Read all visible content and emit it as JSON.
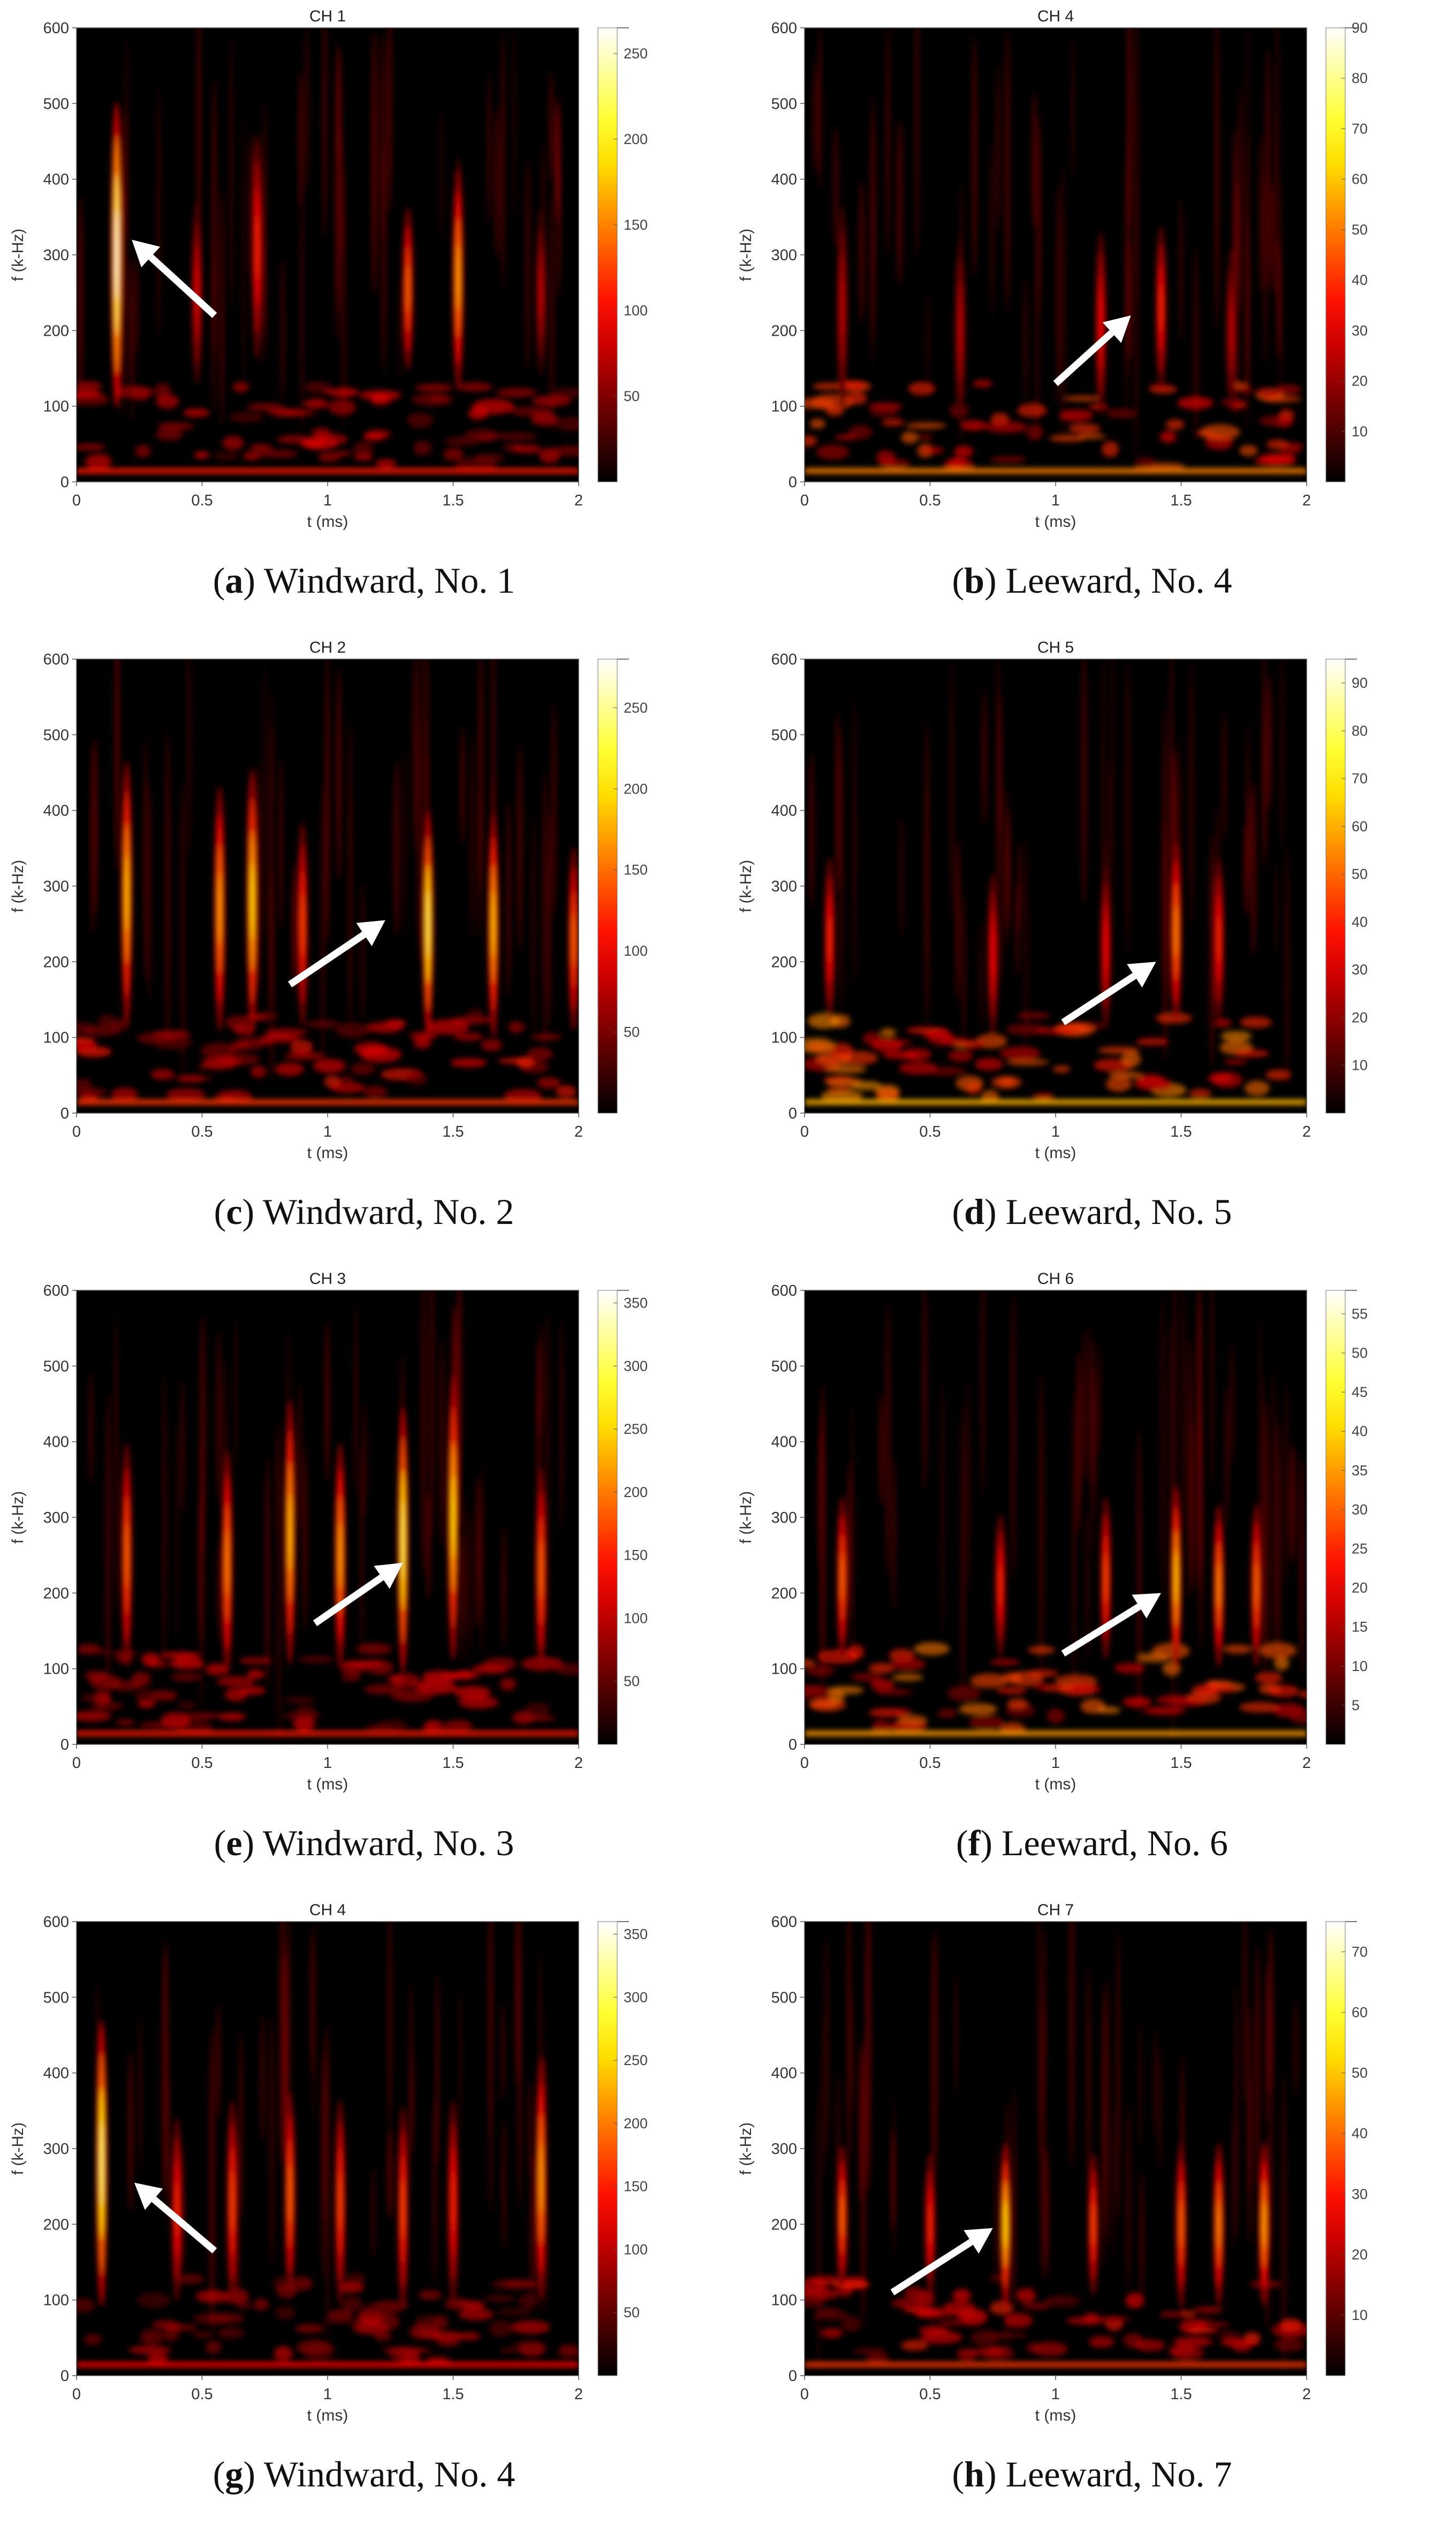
{
  "figure": {
    "x_axis_label": "t (ms)",
    "y_axis_label": "f (k-Hz)",
    "x_ticks": [
      "0",
      "0.5",
      "1",
      "1.5",
      "2"
    ],
    "y_ticks": [
      "0",
      "100",
      "200",
      "300",
      "400",
      "500",
      "600"
    ]
  },
  "chart_data": [
    {
      "type": "heatmap",
      "panel_letter": "a",
      "caption_text": " Windward, No. 1",
      "title": "CH 1",
      "xlabel": "t (ms)",
      "ylabel": "f (k-Hz)",
      "xlim": [
        0,
        2
      ],
      "ylim": [
        0,
        600
      ],
      "colorbar": {
        "range": [
          0,
          265
        ],
        "ticks": [
          50,
          100,
          150,
          200,
          250
        ]
      },
      "colormap": "hot",
      "ridges": [
        {
          "t": 0.16,
          "f_center": 300,
          "f_spread": 150,
          "intensity": 1.0
        },
        {
          "t": 0.48,
          "f_center": 250,
          "f_spread": 90,
          "intensity": 0.35
        },
        {
          "t": 0.72,
          "f_center": 310,
          "f_spread": 110,
          "intensity": 0.45
        },
        {
          "t": 1.32,
          "f_center": 255,
          "f_spread": 80,
          "intensity": 0.55
        },
        {
          "t": 1.52,
          "f_center": 270,
          "f_spread": 110,
          "intensity": 0.65
        },
        {
          "t": 1.85,
          "f_center": 250,
          "f_spread": 80,
          "intensity": 0.3
        }
      ],
      "low_band_intensity": 0.55,
      "arrow": {
        "from_t": 0.55,
        "from_f": 220,
        "to_t": 0.22,
        "to_f": 320
      }
    },
    {
      "type": "heatmap",
      "panel_letter": "b",
      "caption_text": " Leeward, No. 4",
      "title": "CH 4",
      "xlabel": "t (ms)",
      "ylabel": "f (k-Hz)",
      "xlim": [
        0,
        2
      ],
      "ylim": [
        0,
        600
      ],
      "colorbar": {
        "range": [
          0,
          90
        ],
        "ticks": [
          10,
          20,
          30,
          40,
          50,
          60,
          70,
          80,
          90
        ]
      },
      "colormap": "hot",
      "ridges": [
        {
          "t": 0.15,
          "f_center": 230,
          "f_spread": 100,
          "intensity": 0.3
        },
        {
          "t": 0.62,
          "f_center": 200,
          "f_spread": 90,
          "intensity": 0.3
        },
        {
          "t": 1.18,
          "f_center": 210,
          "f_spread": 90,
          "intensity": 0.4
        },
        {
          "t": 1.42,
          "f_center": 230,
          "f_spread": 80,
          "intensity": 0.45
        },
        {
          "t": 1.7,
          "f_center": 200,
          "f_spread": 80,
          "intensity": 0.3
        }
      ],
      "low_band_intensity": 0.75,
      "arrow": {
        "from_t": 1.0,
        "from_f": 130,
        "to_t": 1.3,
        "to_f": 220
      }
    },
    {
      "type": "heatmap",
      "panel_letter": "c",
      "caption_text": " Windward, No. 2",
      "title": "CH 2",
      "xlabel": "t (ms)",
      "ylabel": "f (k-Hz)",
      "xlim": [
        0,
        2
      ],
      "ylim": [
        0,
        600
      ],
      "colorbar": {
        "range": [
          0,
          280
        ],
        "ticks": [
          50,
          100,
          150,
          200,
          250
        ]
      },
      "colormap": "hot",
      "ridges": [
        {
          "t": 0.2,
          "f_center": 290,
          "f_spread": 130,
          "intensity": 0.7
        },
        {
          "t": 0.57,
          "f_center": 270,
          "f_spread": 120,
          "intensity": 0.65
        },
        {
          "t": 0.7,
          "f_center": 280,
          "f_spread": 130,
          "intensity": 0.75
        },
        {
          "t": 0.9,
          "f_center": 250,
          "f_spread": 100,
          "intensity": 0.5
        },
        {
          "t": 1.4,
          "f_center": 250,
          "f_spread": 110,
          "intensity": 0.85
        },
        {
          "t": 1.66,
          "f_center": 250,
          "f_spread": 110,
          "intensity": 0.7
        },
        {
          "t": 1.98,
          "f_center": 230,
          "f_spread": 90,
          "intensity": 0.55
        }
      ],
      "low_band_intensity": 0.6,
      "arrow": {
        "from_t": 0.85,
        "from_f": 170,
        "to_t": 1.23,
        "to_f": 255
      }
    },
    {
      "type": "heatmap",
      "panel_letter": "d",
      "caption_text": " Leeward, No. 5",
      "title": "CH 5",
      "xlabel": "t (ms)",
      "ylabel": "f (k-Hz)",
      "xlim": [
        0,
        2
      ],
      "ylim": [
        0,
        600
      ],
      "colorbar": {
        "range": [
          0,
          95
        ],
        "ticks": [
          10,
          20,
          30,
          40,
          50,
          60,
          70,
          80,
          90
        ]
      },
      "colormap": "hot",
      "ridges": [
        {
          "t": 0.1,
          "f_center": 230,
          "f_spread": 80,
          "intensity": 0.45
        },
        {
          "t": 0.75,
          "f_center": 210,
          "f_spread": 80,
          "intensity": 0.4
        },
        {
          "t": 1.2,
          "f_center": 220,
          "f_spread": 80,
          "intensity": 0.4
        },
        {
          "t": 1.48,
          "f_center": 240,
          "f_spread": 90,
          "intensity": 0.6
        },
        {
          "t": 1.65,
          "f_center": 230,
          "f_spread": 80,
          "intensity": 0.45
        }
      ],
      "low_band_intensity": 0.85,
      "arrow": {
        "from_t": 1.03,
        "from_f": 120,
        "to_t": 1.4,
        "to_f": 200
      }
    },
    {
      "type": "heatmap",
      "panel_letter": "e",
      "caption_text": " Windward, No. 3",
      "title": "CH 3",
      "xlabel": "t (ms)",
      "ylabel": "f (k-Hz)",
      "xlim": [
        0,
        2
      ],
      "ylim": [
        0,
        600
      ],
      "colorbar": {
        "range": [
          0,
          360
        ],
        "ticks": [
          50,
          100,
          150,
          200,
          250,
          300,
          350
        ]
      },
      "colormap": "hot",
      "ridges": [
        {
          "t": 0.2,
          "f_center": 250,
          "f_spread": 110,
          "intensity": 0.55
        },
        {
          "t": 0.6,
          "f_center": 240,
          "f_spread": 110,
          "intensity": 0.6
        },
        {
          "t": 0.85,
          "f_center": 280,
          "f_spread": 130,
          "intensity": 0.7
        },
        {
          "t": 1.05,
          "f_center": 250,
          "f_spread": 110,
          "intensity": 0.65
        },
        {
          "t": 1.3,
          "f_center": 270,
          "f_spread": 130,
          "intensity": 0.85
        },
        {
          "t": 1.5,
          "f_center": 300,
          "f_spread": 140,
          "intensity": 0.75
        },
        {
          "t": 1.85,
          "f_center": 230,
          "f_spread": 100,
          "intensity": 0.55
        }
      ],
      "low_band_intensity": 0.55,
      "arrow": {
        "from_t": 0.95,
        "from_f": 160,
        "to_t": 1.3,
        "to_f": 240
      }
    },
    {
      "type": "heatmap",
      "panel_letter": "f",
      "caption_text": " Leeward, No. 6",
      "title": "CH 6",
      "xlabel": "t (ms)",
      "ylabel": "f (k-Hz)",
      "xlim": [
        0,
        2
      ],
      "ylim": [
        0,
        600
      ],
      "colorbar": {
        "range": [
          0,
          58
        ],
        "ticks": [
          5,
          10,
          15,
          20,
          25,
          30,
          35,
          40,
          45,
          50,
          55
        ]
      },
      "colormap": "hot",
      "ridges": [
        {
          "t": 0.15,
          "f_center": 220,
          "f_spread": 80,
          "intensity": 0.55
        },
        {
          "t": 0.78,
          "f_center": 210,
          "f_spread": 70,
          "intensity": 0.45
        },
        {
          "t": 1.2,
          "f_center": 220,
          "f_spread": 80,
          "intensity": 0.5
        },
        {
          "t": 1.48,
          "f_center": 220,
          "f_spread": 90,
          "intensity": 0.7
        },
        {
          "t": 1.65,
          "f_center": 210,
          "f_spread": 80,
          "intensity": 0.6
        },
        {
          "t": 1.8,
          "f_center": 210,
          "f_spread": 80,
          "intensity": 0.55
        }
      ],
      "low_band_intensity": 0.8,
      "arrow": {
        "from_t": 1.03,
        "from_f": 120,
        "to_t": 1.42,
        "to_f": 200
      }
    },
    {
      "type": "heatmap",
      "panel_letter": "g",
      "caption_text": " Windward, No. 4",
      "title": "CH 4",
      "xlabel": "t (ms)",
      "ylabel": "f (k-Hz)",
      "xlim": [
        0,
        2
      ],
      "ylim": [
        0,
        600
      ],
      "colorbar": {
        "range": [
          0,
          360
        ],
        "ticks": [
          50,
          100,
          150,
          200,
          250,
          300,
          350
        ]
      },
      "colormap": "hot",
      "ridges": [
        {
          "t": 0.1,
          "f_center": 280,
          "f_spread": 140,
          "intensity": 0.9
        },
        {
          "t": 0.4,
          "f_center": 220,
          "f_spread": 90,
          "intensity": 0.45
        },
        {
          "t": 0.62,
          "f_center": 230,
          "f_spread": 100,
          "intensity": 0.5
        },
        {
          "t": 0.85,
          "f_center": 240,
          "f_spread": 100,
          "intensity": 0.55
        },
        {
          "t": 1.05,
          "f_center": 230,
          "f_spread": 100,
          "intensity": 0.5
        },
        {
          "t": 1.3,
          "f_center": 220,
          "f_spread": 100,
          "intensity": 0.5
        },
        {
          "t": 1.5,
          "f_center": 230,
          "f_spread": 100,
          "intensity": 0.45
        },
        {
          "t": 1.85,
          "f_center": 260,
          "f_spread": 120,
          "intensity": 0.65
        }
      ],
      "low_band_intensity": 0.5,
      "arrow": {
        "from_t": 0.55,
        "from_f": 165,
        "to_t": 0.23,
        "to_f": 255
      }
    },
    {
      "type": "heatmap",
      "panel_letter": "h",
      "caption_text": " Leeward, No. 7",
      "title": "CH 7",
      "xlabel": "t (ms)",
      "ylabel": "f (k-Hz)",
      "xlim": [
        0,
        2
      ],
      "ylim": [
        0,
        600
      ],
      "colorbar": {
        "range": [
          0,
          75
        ],
        "ticks": [
          10,
          20,
          30,
          40,
          50,
          60,
          70
        ]
      },
      "colormap": "hot",
      "ridges": [
        {
          "t": 0.15,
          "f_center": 210,
          "f_spread": 70,
          "intensity": 0.55
        },
        {
          "t": 0.5,
          "f_center": 200,
          "f_spread": 70,
          "intensity": 0.45
        },
        {
          "t": 0.8,
          "f_center": 200,
          "f_spread": 80,
          "intensity": 0.75
        },
        {
          "t": 1.15,
          "f_center": 200,
          "f_spread": 70,
          "intensity": 0.5
        },
        {
          "t": 1.5,
          "f_center": 200,
          "f_spread": 80,
          "intensity": 0.55
        },
        {
          "t": 1.65,
          "f_center": 200,
          "f_spread": 80,
          "intensity": 0.6
        },
        {
          "t": 1.83,
          "f_center": 200,
          "f_spread": 80,
          "intensity": 0.65
        }
      ],
      "low_band_intensity": 0.6,
      "arrow": {
        "from_t": 0.35,
        "from_f": 110,
        "to_t": 0.75,
        "to_f": 195
      }
    }
  ]
}
